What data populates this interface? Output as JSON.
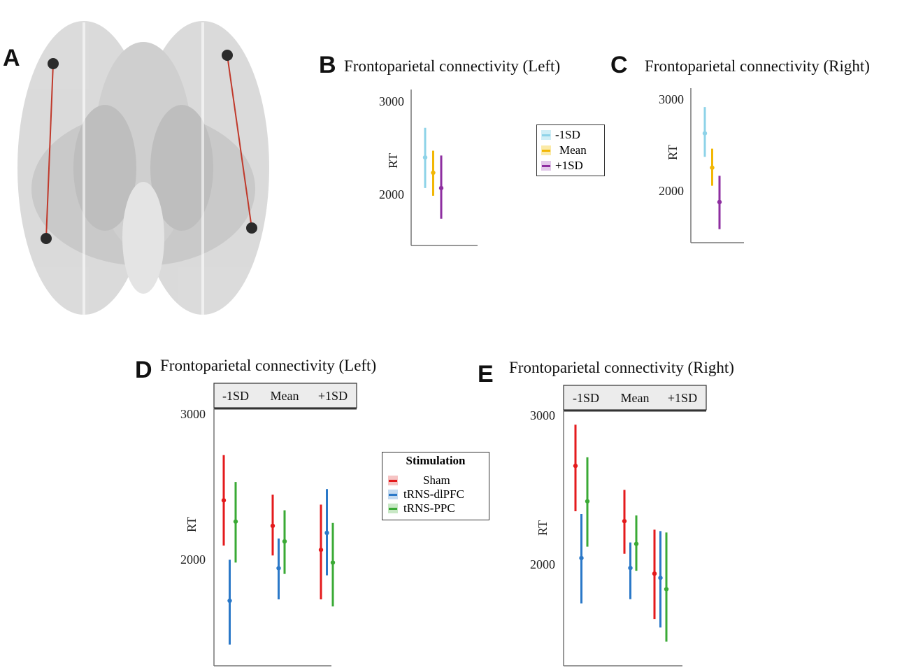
{
  "panels": {
    "a": {
      "letter": "A"
    },
    "b": {
      "letter": "B",
      "title": "Frontoparietal connectivity (Left)"
    },
    "c": {
      "letter": "C",
      "title": "Frontoparietal connectivity (Right)"
    },
    "d": {
      "letter": "D",
      "title": "Frontoparietal connectivity (Left)"
    },
    "e": {
      "letter": "E",
      "title": "Frontoparietal connectivity (Right)"
    }
  },
  "legend_bc": {
    "entries": [
      "-1SD",
      "Mean",
      "+1SD"
    ]
  },
  "legend_de": {
    "title": "Stimulation",
    "entries": [
      "Sham",
      "tRNS-dlPFC",
      "tRNS-PPC"
    ]
  },
  "colors": {
    "minus1sd": "#8ed3e8",
    "mean": "#f2b705",
    "plus1sd": "#8e2ea0",
    "sham": "#e41a1c",
    "dlpfc": "#2a78c8",
    "ppc": "#3aaa35"
  },
  "chart_data": [
    {
      "id": "B",
      "type": "errorbar",
      "title": "Frontoparietal connectivity (Left)",
      "ylabel": "RT",
      "yticks": [
        2000,
        3000
      ],
      "ylim": [
        1500,
        3130
      ],
      "series": [
        {
          "name": "-1SD",
          "value": 2420,
          "low": 2100,
          "high": 2730
        },
        {
          "name": "Mean",
          "value": 2260,
          "low": 2020,
          "high": 2490
        },
        {
          "name": "+1SD",
          "value": 2100,
          "low": 1780,
          "high": 2440
        }
      ]
    },
    {
      "id": "C",
      "type": "errorbar",
      "title": "Frontoparietal connectivity (Right)",
      "ylabel": "RT",
      "yticks": [
        2000,
        3000
      ],
      "ylim": [
        1430,
        3140
      ],
      "series": [
        {
          "name": "-1SD",
          "value": 2640,
          "low": 2380,
          "high": 2930
        },
        {
          "name": "Mean",
          "value": 2260,
          "low": 2060,
          "high": 2470
        },
        {
          "name": "+1SD",
          "value": 1880,
          "low": 1580,
          "high": 2170
        }
      ]
    },
    {
      "id": "D",
      "type": "errorbar",
      "title": "Frontoparietal connectivity (Left)",
      "ylabel": "RT",
      "yticks": [
        2000,
        3000
      ],
      "ylim": [
        1270,
        3090
      ],
      "facets": [
        "-1SD",
        "Mean",
        "+1SD"
      ],
      "series": [
        {
          "name": "Sham",
          "values": [
            2440,
            2260,
            2090
          ],
          "low": [
            2120,
            2050,
            1740
          ],
          "high": [
            2760,
            2480,
            2410
          ]
        },
        {
          "name": "tRNS-dlPFC",
          "values": [
            1730,
            1960,
            2210
          ],
          "low": [
            1420,
            1740,
            1910
          ],
          "high": [
            2020,
            2170,
            2520
          ]
        },
        {
          "name": "tRNS-PPC",
          "values": [
            2290,
            2150,
            2000
          ],
          "low": [
            2000,
            1920,
            1690
          ],
          "high": [
            2570,
            2370,
            2280
          ]
        }
      ]
    },
    {
      "id": "E",
      "type": "errorbar",
      "title": "Frontoparietal connectivity (Right)",
      "ylabel": "RT",
      "yticks": [
        2000,
        3000
      ],
      "ylim": [
        1290,
        3090
      ],
      "facets": [
        "-1SD",
        "Mean",
        "+1SD"
      ],
      "series": [
        {
          "name": "Sham",
          "values": [
            2700,
            2310,
            1940
          ],
          "low": [
            2380,
            2080,
            1620
          ],
          "high": [
            2990,
            2530,
            2250
          ]
        },
        {
          "name": "tRNS-dlPFC",
          "values": [
            2050,
            1980,
            1910
          ],
          "low": [
            1730,
            1760,
            1560
          ],
          "high": [
            2360,
            2160,
            2240
          ]
        },
        {
          "name": "tRNS-PPC",
          "values": [
            2450,
            2150,
            1830
          ],
          "low": [
            2130,
            1960,
            1460
          ],
          "high": [
            2760,
            2350,
            2230
          ]
        }
      ]
    }
  ]
}
